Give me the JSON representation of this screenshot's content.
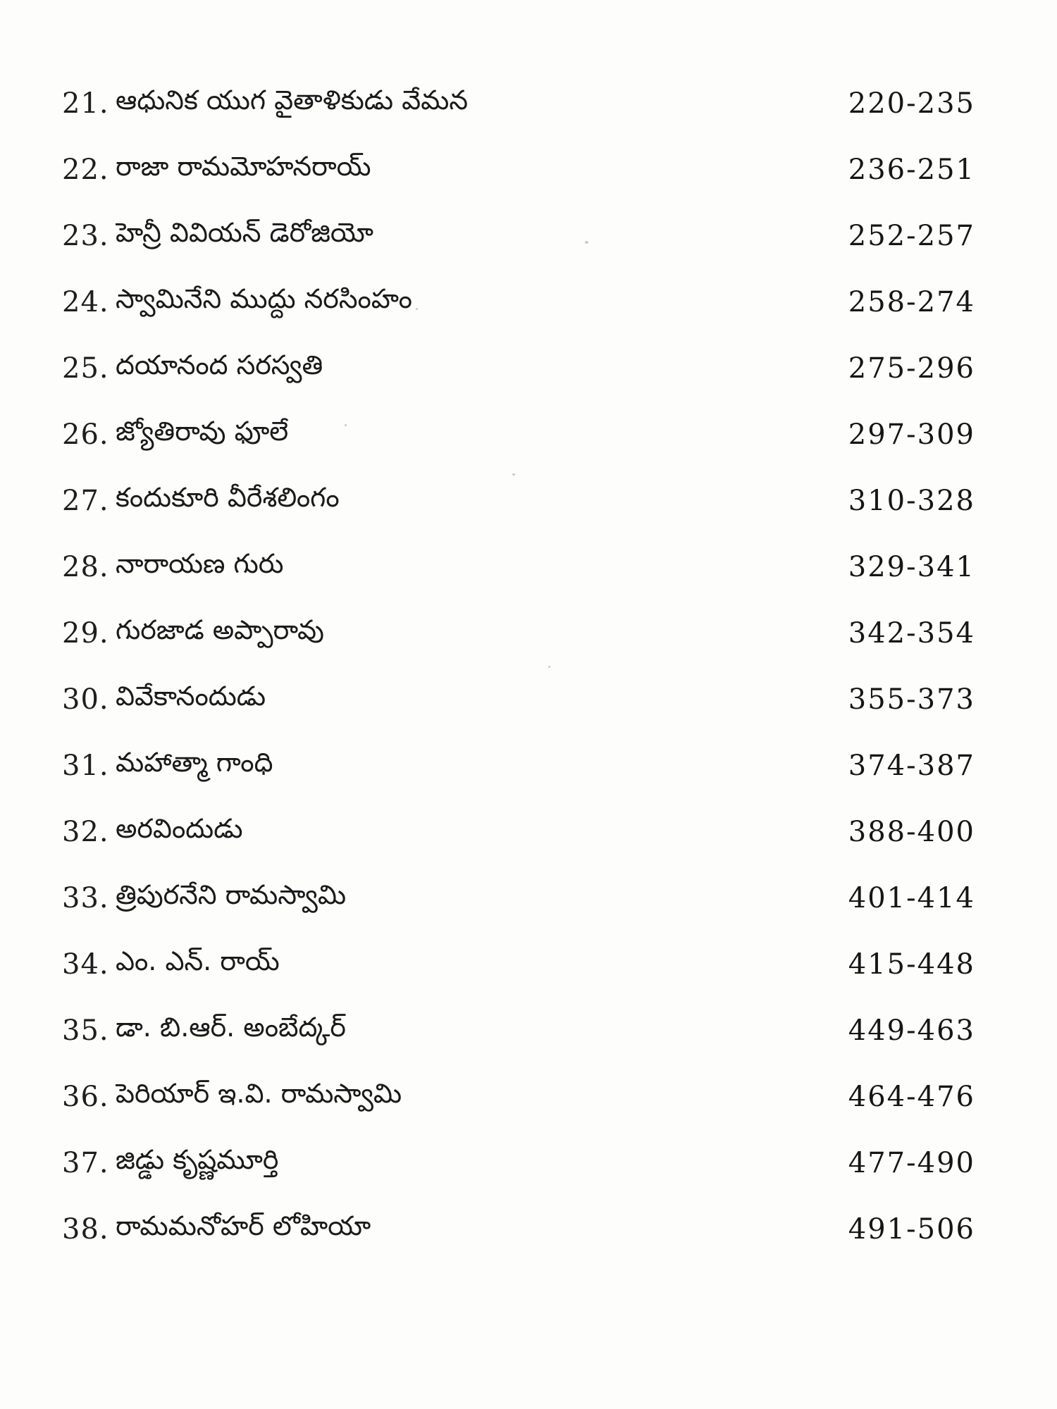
{
  "page": {
    "background_color": "#fdfdfc",
    "text_color": "#1a1a1a",
    "kind": "book-table-of-contents",
    "language": "Telugu"
  },
  "toc": {
    "entries": [
      {
        "no": "21.",
        "title": "ఆధునిక యుగ వైతాళికుడు వేమన",
        "pages": "220-235"
      },
      {
        "no": "22.",
        "title": "రాజా రామమోహనరాయ్",
        "pages": "236-251"
      },
      {
        "no": "23.",
        "title": "హెన్రీ వివియన్ డెరోజియో",
        "pages": "252-257"
      },
      {
        "no": "24.",
        "title": "స్వామినేని ముద్దు నరసింహం",
        "pages": "258-274"
      },
      {
        "no": "25.",
        "title": "దయానంద సరస్వతి",
        "pages": "275-296"
      },
      {
        "no": "26.",
        "title": "జ్యోతిరావు ఫూలే",
        "pages": "297-309"
      },
      {
        "no": "27.",
        "title": "కందుకూరి వీరేశలింగం",
        "pages": "310-328"
      },
      {
        "no": "28.",
        "title": "నారాయణ గురు",
        "pages": "329-341"
      },
      {
        "no": "29.",
        "title": "గురజాడ అప్పారావు",
        "pages": "342-354"
      },
      {
        "no": "30.",
        "title": "వివేకానందుడు",
        "pages": "355-373"
      },
      {
        "no": "31.",
        "title": "మహాత్మా గాంధి",
        "pages": "374-387"
      },
      {
        "no": "32.",
        "title": "అరవిందుడు",
        "pages": "388-400"
      },
      {
        "no": "33.",
        "title": "త్రిపురనేని రామస్వామి",
        "pages": "401-414"
      },
      {
        "no": "34.",
        "title": "ఎం. ఎన్. రాయ్",
        "pages": "415-448"
      },
      {
        "no": "35.",
        "title": "డా. బి.ఆర్. అంబేద్కర్",
        "pages": "449-463"
      },
      {
        "no": "36.",
        "title": "పెరియార్ ఇ.వి. రామస్వామి",
        "pages": "464-476"
      },
      {
        "no": "37.",
        "title": "జిడ్డు కృష్ణమూర్తి",
        "pages": "477-490"
      },
      {
        "no": "38.",
        "title": "రామమనోహర్ లోహియా",
        "pages": "491-506"
      }
    ]
  }
}
